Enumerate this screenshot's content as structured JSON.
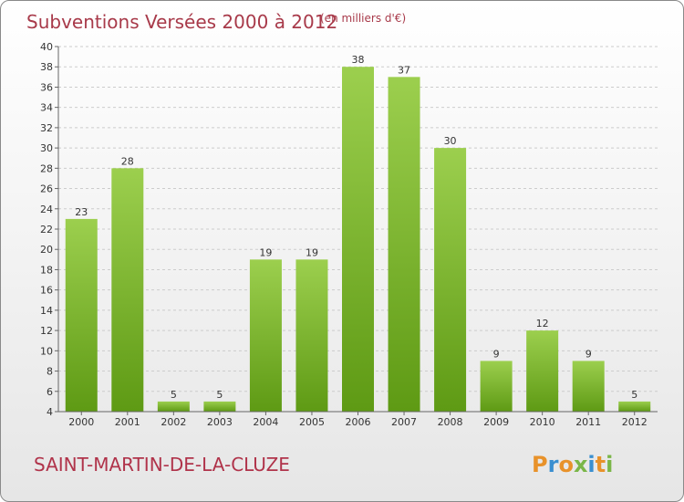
{
  "header": {
    "title": "Subventions Versées 2000 à 2012",
    "unit": "(en milliers d'€)"
  },
  "footer": {
    "commune": "SAINT-MARTIN-DE-LA-CLUZE",
    "logo": "Proxiti"
  },
  "colors": {
    "bar_top": "#9ccf4e",
    "bar_bottom": "#5e9a14",
    "title": "#a83a4a",
    "commune": "#b0334a",
    "grid": "#cccccc",
    "logo_letters": [
      "#e8922a",
      "#3a8fd0",
      "#e8922a",
      "#7ab648",
      "#3a8fd0",
      "#e8922a",
      "#7ab648"
    ]
  },
  "chart_data": {
    "type": "bar",
    "categories": [
      "2000",
      "2001",
      "2002",
      "2003",
      "2004",
      "2005",
      "2006",
      "2007",
      "2008",
      "2009",
      "2010",
      "2011",
      "2012"
    ],
    "values": [
      23,
      28,
      5,
      5,
      19,
      19,
      38,
      37,
      30,
      9,
      12,
      9,
      5
    ],
    "title": "Subventions Versées 2000 à 2012",
    "xlabel": "",
    "ylabel": "",
    "ylim": [
      4,
      40
    ],
    "yticks": [
      4,
      6,
      8,
      10,
      12,
      14,
      16,
      18,
      20,
      22,
      24,
      26,
      28,
      30,
      32,
      34,
      36,
      38,
      40
    ],
    "grid": true,
    "legend": "none"
  }
}
